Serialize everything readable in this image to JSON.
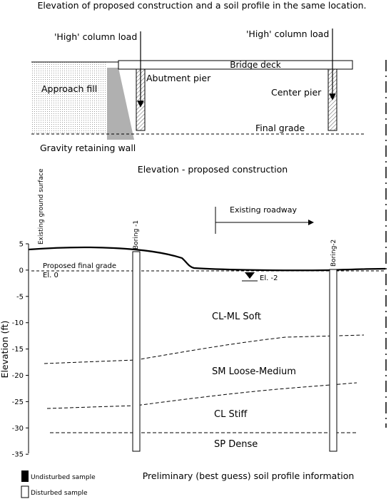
{
  "page_title": "Elevation of proposed construction and a soil profile in the same location.",
  "elevation_view": {
    "column_load_left": "'High' column load",
    "column_load_right": "'High' column load",
    "bridge_deck": "Bridge deck",
    "abutment_pier": "Abutment pier",
    "center_pier": "Center pier",
    "approach_fill": "Approach fill",
    "final_grade": "Final grade",
    "gravity_retaining_wall": "Gravity retaining wall",
    "caption": "Elevation - proposed construction"
  },
  "soil_profile": {
    "existing_ground_surface": "Existing ground surface",
    "boring_1": "Boring -1",
    "boring_2": "Boring-2",
    "existing_roadway": "Existing roadway",
    "proposed_final_grade": "Proposed final grade",
    "el_0": "El. 0",
    "water_table": "El. -2",
    "layers": [
      "CL-ML Soft",
      "SM Loose-Medium",
      "CL Stiff",
      "SP Dense"
    ],
    "y_axis_label": "Elevation (ft)",
    "y_ticks": [
      "5",
      "0",
      "-5",
      "-10",
      "-15",
      "-20",
      "-25",
      "-30",
      "-35"
    ],
    "caption": "Preliminary (best guess) soil profile information"
  },
  "legend": {
    "undisturbed": "Undisturbed sample",
    "disturbed": "Disturbed sample"
  }
}
